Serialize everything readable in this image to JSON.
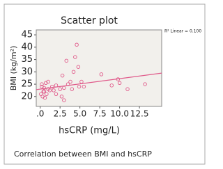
{
  "chart_data": {
    "type": "scatter",
    "title": "Scatter plot",
    "x_label": "hsCRP (mg/L)",
    "y_label": "BMI (kg/m²)",
    "annotation": "R² Linear = 0.100",
    "caption": "Correlation between BMI and hsCRP",
    "color": "#e05a8a",
    "marker": "hollow-circle",
    "x": [
      0.1,
      0.2,
      0.2,
      0.3,
      0.4,
      0.5,
      0.5,
      0.6,
      0.7,
      0.8,
      1.0,
      1.0,
      1.2,
      1.5,
      1.7,
      2.0,
      2.0,
      2.5,
      2.7,
      2.8,
      3.0,
      3.0,
      3.3,
      3.5,
      3.8,
      4.0,
      4.2,
      4.4,
      4.6,
      4.8,
      4.9,
      5.2,
      5.5,
      7.7,
      9.0,
      9.8,
      10.0,
      11.0,
      13.2
    ],
    "y": [
      21,
      25,
      24,
      20,
      22,
      23.5,
      22,
      19.5,
      25.5,
      21,
      23,
      26,
      22.5,
      24,
      22.5,
      21,
      24.5,
      23,
      20,
      28.5,
      18.5,
      23.5,
      34.5,
      25,
      26,
      23,
      30,
      36,
      41,
      32,
      24,
      26,
      24,
      29,
      24.5,
      27,
      25.5,
      23,
      25
    ],
    "fit_line": {
      "x": [
        -0.5,
        15.3
      ],
      "y": [
        22.8,
        29.5
      ]
    },
    "xlim": [
      -0.5,
      15.3
    ],
    "ylim": [
      16,
      47
    ],
    "xticks": [
      {
        "value": 0,
        "label": ".0"
      },
      2.5,
      {
        "value": 5,
        "label": "5.0"
      },
      7.5,
      {
        "value": 10,
        "label": "10.0"
      },
      12.5
    ],
    "yticks": [
      20,
      25,
      30,
      35,
      40,
      45
    ]
  }
}
